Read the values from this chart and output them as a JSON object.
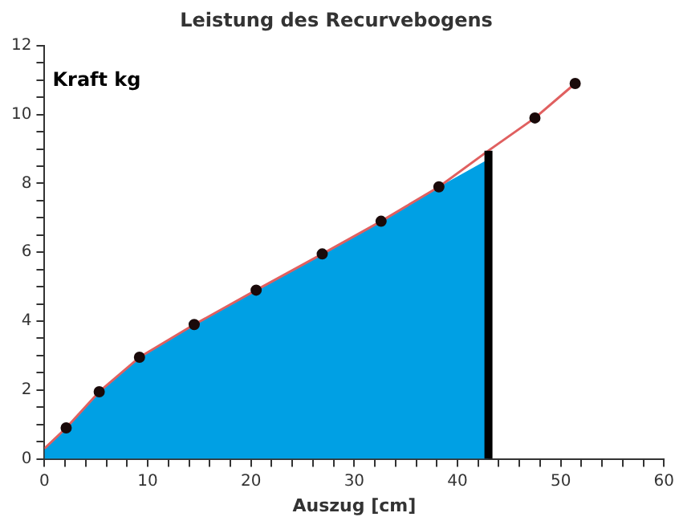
{
  "chart_data": {
    "type": "line",
    "title": "Leistung des Recurvebogens",
    "xlabel": "Auszug [cm]",
    "ylabel": "Kraft kg",
    "series": [
      {
        "type": "area",
        "color": "#00a0e4",
        "x": [
          0,
          2.1,
          5.3,
          9.2,
          14.5,
          20.5,
          26.9,
          32.6,
          38.2,
          43
        ],
        "values": [
          0.3,
          0.9,
          1.95,
          2.95,
          3.9,
          4.9,
          5.95,
          6.9,
          7.9,
          8.7
        ]
      },
      {
        "color": "#e06060",
        "marker": "none",
        "x": [
          0,
          2.1,
          5.3,
          9.2,
          14.5,
          20.5,
          26.9,
          32.6,
          38.2,
          43,
          47.5,
          51.4
        ],
        "values": [
          0.3,
          0.9,
          1.95,
          2.95,
          3.9,
          4.9,
          5.95,
          6.9,
          7.9,
          8.95,
          9.9,
          10.9
        ]
      },
      {
        "type": "scatter",
        "color": "#1a0a0a",
        "marker": "circle",
        "x": [
          2.1,
          5.3,
          9.2,
          14.5,
          20.5,
          26.9,
          32.6,
          38.2,
          47.5,
          51.4
        ],
        "values": [
          0.9,
          1.95,
          2.95,
          3.9,
          4.9,
          5.95,
          6.9,
          7.9,
          9.9,
          10.9
        ]
      },
      {
        "color": "#000000",
        "marker": "none",
        "x": [
          43,
          43
        ],
        "values": [
          0,
          8.95
        ]
      }
    ],
    "xlim": [
      0,
      60
    ],
    "ylim": [
      0,
      12
    ],
    "xticks": [
      0,
      {
        "value": 2,
        "label": null
      },
      {
        "value": 4,
        "label": null
      },
      {
        "value": 6,
        "label": null
      },
      {
        "value": 8,
        "label": null
      },
      10,
      {
        "value": 12,
        "label": null
      },
      {
        "value": 14,
        "label": null
      },
      {
        "value": 16,
        "label": null
      },
      {
        "value": 18,
        "label": null
      },
      20,
      {
        "value": 22,
        "label": null
      },
      {
        "value": 24,
        "label": null
      },
      {
        "value": 26,
        "label": null
      },
      {
        "value": 28,
        "label": null
      },
      30,
      {
        "value": 32,
        "label": null
      },
      {
        "value": 34,
        "label": null
      },
      {
        "value": 36,
        "label": null
      },
      {
        "value": 38,
        "label": null
      },
      40,
      {
        "value": 42,
        "label": null
      },
      {
        "value": 44,
        "label": null
      },
      {
        "value": 46,
        "label": null
      },
      {
        "value": 48,
        "label": null
      },
      50,
      {
        "value": 52,
        "label": null
      },
      {
        "value": 54,
        "label": null
      },
      {
        "value": 56,
        "label": null
      },
      {
        "value": 58,
        "label": null
      },
      60
    ],
    "yticks": [
      0,
      {
        "value": 0.5,
        "label": null
      },
      {
        "value": 1,
        "label": null
      },
      {
        "value": 1.5,
        "label": null
      },
      2,
      {
        "value": 2.5,
        "label": null
      },
      {
        "value": 3,
        "label": null
      },
      {
        "value": 3.5,
        "label": null
      },
      4,
      {
        "value": 4.5,
        "label": null
      },
      {
        "value": 5,
        "label": null
      },
      {
        "value": 5.5,
        "label": null
      },
      6,
      {
        "value": 6.5,
        "label": null
      },
      {
        "value": 7,
        "label": null
      },
      {
        "value": 7.5,
        "label": null
      },
      8,
      {
        "value": 8.5,
        "label": null
      },
      {
        "value": 9,
        "label": null
      },
      {
        "value": 9.5,
        "label": null
      },
      10,
      {
        "value": 10.5,
        "label": null
      },
      {
        "value": 11,
        "label": null
      },
      {
        "value": 11.5,
        "label": null
      },
      12
    ],
    "grid": false,
    "legend": false
  }
}
